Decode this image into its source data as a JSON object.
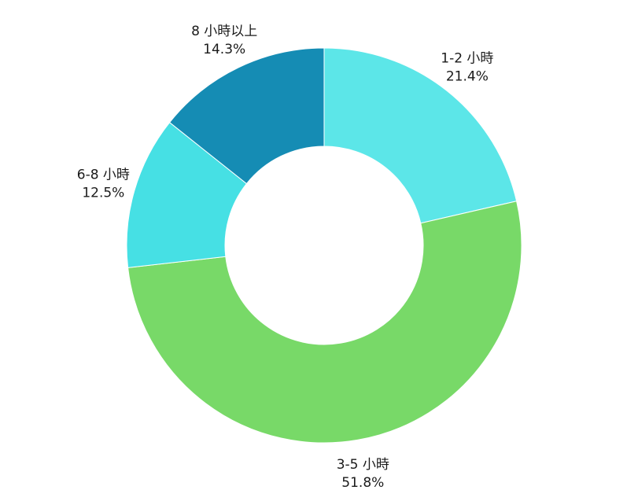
{
  "chart_data": {
    "type": "pie",
    "donut": true,
    "title": "",
    "slices": [
      {
        "label": "1-2 小時",
        "value": 21.4,
        "value_label": "21.4%",
        "color": "#5ce6e8"
      },
      {
        "label": "3-5 小時",
        "value": 51.8,
        "value_label": "51.8%",
        "color": "#78d968"
      },
      {
        "label": "6-8 小時",
        "value": 12.5,
        "value_label": "12.5%",
        "color": "#46e0e4"
      },
      {
        "label": "8 小時以上",
        "value": 14.3,
        "value_label": "14.3%",
        "color": "#158cb4"
      }
    ]
  }
}
